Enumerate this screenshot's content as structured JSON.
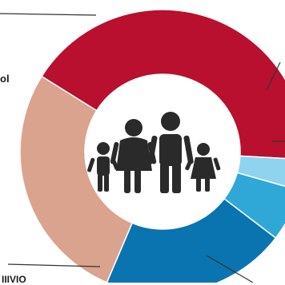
{
  "chart_data": {
    "type": "pie",
    "variant": "donut",
    "slices": [
      {
        "label": "",
        "value": 42.0,
        "color": "#b8102e"
      },
      {
        "label": "",
        "value": 3.5,
        "color": "#8fd3ef"
      },
      {
        "label": "",
        "value": 6.0,
        "color": "#2fa8d8"
      },
      {
        "label": "",
        "value": 21.0,
        "color": "#0a74b0"
      },
      {
        "label": "",
        "value": 27.5,
        "color": "#d9a38e"
      }
    ],
    "center_icon": "family-icon",
    "visible_label_fragments": {
      "left": "ol",
      "bottom": "IIIVIO"
    }
  }
}
